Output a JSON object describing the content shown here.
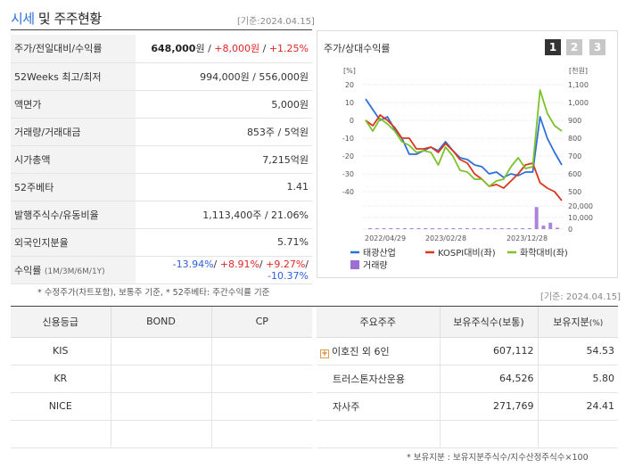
{
  "header": {
    "title_accent": "시세",
    "title_rest": " 및 주주현황",
    "date": "[기준:2024.04.15]"
  },
  "price_table": {
    "rows": [
      {
        "label": "주가/전일대비/수익률",
        "price": "648,000",
        "price_unit": "원",
        "change": "+8,000원",
        "rate": "+1.25%"
      },
      {
        "label": "52Weeks 최고/최저",
        "value": "994,000원 / 556,000원"
      },
      {
        "label": "액면가",
        "value": "5,000원"
      },
      {
        "label": "거래량/거래대금",
        "value": "853주 / 5억원"
      },
      {
        "label": "시가총액",
        "value": "7,215억원"
      },
      {
        "label": "52주베타",
        "value": "1.41"
      },
      {
        "label": "발행주식수/유동비율",
        "value": "1,113,400주 / 21.06%"
      },
      {
        "label": "외국인지분율",
        "value": "5.71%"
      },
      {
        "label": "수익률",
        "label_sub": "(1M/3M/6M/1Y)",
        "r1": "-13.94%",
        "r2": "+8.91%",
        "r3": "+9.27%",
        "r4": "-10.37%"
      }
    ]
  },
  "note1": "* 수정주가(차트포함), 보통주 기준, * 52주베타: 주간수익률 기준",
  "chart_panel": {
    "title": "주가/상대수익률",
    "tabs": [
      "1",
      "2",
      "3"
    ],
    "active_tab": "1"
  },
  "chart_data": {
    "type": "line",
    "left_axis_label": "[%]",
    "right_axis_label": "[천원]",
    "left_ticks": [
      "20",
      "10",
      "0",
      "-10",
      "-20",
      "-30",
      "-40"
    ],
    "right_ticks": [
      "1,100",
      "1,000",
      "900",
      "800",
      "700",
      "600",
      "500"
    ],
    "volume_ticks": [
      "20,000",
      "10,000",
      "0"
    ],
    "x_ticks": [
      "2022/04/29",
      "2023/02/28",
      "2023/12/28"
    ],
    "ylim_left": [
      -40,
      20
    ],
    "ylim_right": [
      500,
      1100
    ],
    "series": [
      {
        "name": "태광산업",
        "color": "#2f6fdb",
        "values": [
          12,
          6,
          0,
          2,
          -5,
          -10,
          -19,
          -19,
          -17,
          -15,
          -17,
          -12,
          -17,
          -21,
          -22,
          -25,
          -26,
          -30,
          -29,
          -32,
          -30,
          -31,
          -29,
          -29,
          2,
          -10,
          -18,
          -25
        ]
      },
      {
        "name": "KOSPI대비(좌)",
        "color": "#d9381e",
        "values": [
          0,
          -3,
          3,
          0,
          -4,
          -10,
          -10,
          -16,
          -16,
          -15,
          -18,
          -13,
          -17,
          -22,
          -24,
          -30,
          -33,
          -37,
          -36,
          -38,
          -34,
          -30,
          -25,
          -24,
          -35,
          -38,
          -40,
          -45
        ]
      },
      {
        "name": "화학대비(좌)",
        "color": "#7cc22b",
        "values": [
          0,
          -6,
          1,
          -2,
          -6,
          -12,
          -14,
          -18,
          -17,
          -18,
          -25,
          -15,
          -20,
          -28,
          -29,
          -33,
          -33,
          -37,
          -34,
          -33,
          -26,
          -21,
          -27,
          -26,
          17,
          4,
          -3,
          -6
        ]
      }
    ],
    "volume": {
      "name": "거래량",
      "color": "#9b6fd6",
      "values": [
        200,
        180,
        150,
        180,
        160,
        150,
        140,
        150,
        130,
        140,
        160,
        170,
        140,
        150,
        130,
        160,
        140,
        130,
        150,
        170,
        160,
        140,
        180,
        220,
        19000,
        3000,
        5500,
        1200
      ],
      "ylim": [
        0,
        20000
      ]
    }
  },
  "legend": {
    "items": [
      "태광산업",
      "KOSPI대비(좌)",
      "화학대비(좌)"
    ],
    "volume_label": "거래량"
  },
  "date2": "[기준: 2024.04.15]",
  "credit_table": {
    "headers": [
      "신용등급",
      "BOND",
      "CP"
    ],
    "rows": [
      {
        "agency": "KIS",
        "bond": "",
        "cp": ""
      },
      {
        "agency": "KR",
        "bond": "",
        "cp": ""
      },
      {
        "agency": "NICE",
        "bond": "",
        "cp": ""
      },
      {
        "agency": "",
        "bond": "",
        "cp": ""
      }
    ]
  },
  "shareholder_table": {
    "headers": [
      "주요주주",
      "보유주식수(보통)",
      "보유지분"
    ],
    "header_pct": "(%)",
    "rows": [
      {
        "name": "이호진 외 6인",
        "shares": "607,112",
        "pct": "54.53",
        "expandable": true
      },
      {
        "name": "트러스톤자산운용",
        "shares": "64,526",
        "pct": "5.80",
        "expandable": false
      },
      {
        "name": "자사주",
        "shares": "271,769",
        "pct": "24.41",
        "expandable": false
      }
    ]
  },
  "note2": "* 보유지분 : 보유지분주식수/지수산정주식수×100"
}
